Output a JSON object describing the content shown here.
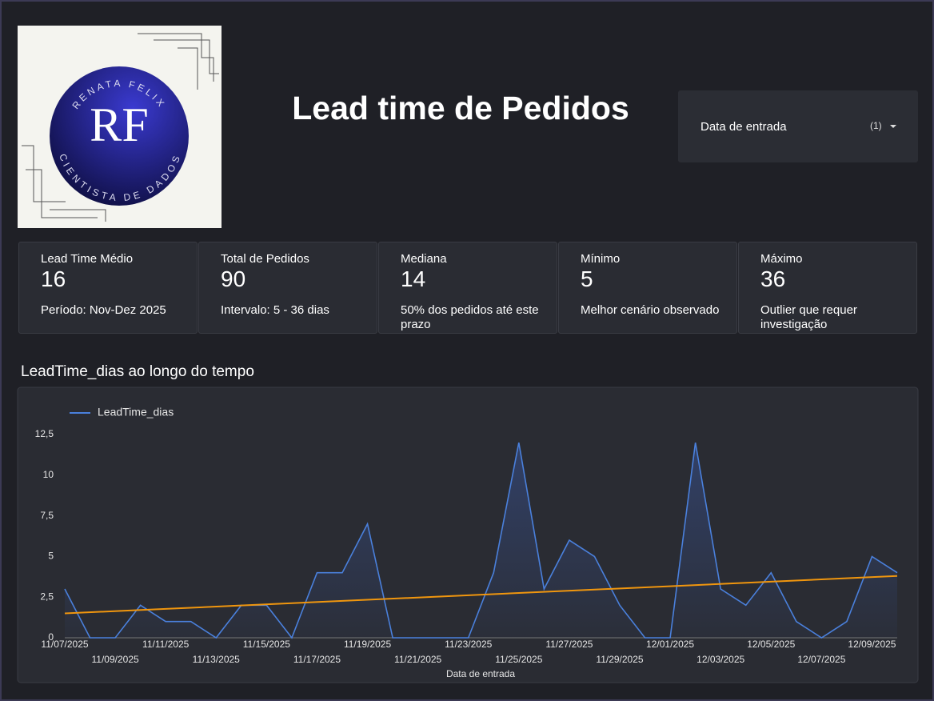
{
  "logo": {
    "top_text": "RENATA FELIX",
    "bottom_text": "CIENTISTA DE DADOS",
    "monogram": "RF"
  },
  "header": {
    "title": "Lead time de Pedidos"
  },
  "filter": {
    "label": "Data de entrada",
    "count": "(1)"
  },
  "cards": [
    {
      "label": "Lead Time Médio",
      "value": 16,
      "note": "Período: Nov-Dez 2025"
    },
    {
      "label": "Total de Pedidos",
      "value": 90,
      "note": "Intervalo: 5 - 36 dias"
    },
    {
      "label": "Mediana",
      "value": 14,
      "note": "50% dos pedidos até este prazo"
    },
    {
      "label": "Mínimo",
      "value": 5,
      "note": "Melhor cenário observado"
    },
    {
      "label": "Máximo",
      "value": 36,
      "note": "Outlier que requer investigação"
    }
  ],
  "chart_data": {
    "type": "line",
    "title": "LeadTime_dias ao longo do tempo",
    "x_label": "Data de entrada",
    "categories": [
      "11/07/2025",
      null,
      "11/09/2025",
      null,
      "11/11/2025",
      null,
      "11/13/2025",
      null,
      "11/15/2025",
      null,
      "11/17/2025",
      null,
      "11/19/2025",
      null,
      "11/21/2025",
      null,
      "11/23/2025",
      null,
      "11/25/2025",
      null,
      "11/27/2025",
      null,
      "11/29/2025",
      null,
      "12/01/2025",
      null,
      "12/03/2025",
      null,
      "12/05/2025",
      null,
      "12/07/2025",
      null,
      "12/09/2025",
      null
    ],
    "series": [
      {
        "name": "LeadTime_dias",
        "color": "#4a80dc",
        "values": [
          3,
          0,
          0,
          2,
          1,
          1,
          0,
          2,
          2,
          0,
          4,
          4,
          7,
          0,
          0,
          0,
          0,
          4,
          12,
          3,
          6,
          5,
          2,
          0,
          0,
          12,
          3,
          2,
          4,
          1,
          0,
          1,
          5,
          4
        ]
      }
    ],
    "trend": {
      "color": "#f0960e",
      "values": [
        1.5,
        3.8
      ]
    },
    "ylim": [
      0,
      12.5
    ],
    "yticks": [
      0,
      {
        "value": 2.5,
        "label": "2,5"
      },
      5,
      {
        "value": 7.5,
        "label": "7,5"
      },
      10,
      {
        "value": 12.5,
        "label": "12,5"
      }
    ],
    "grid": false,
    "legend": "top-left"
  }
}
